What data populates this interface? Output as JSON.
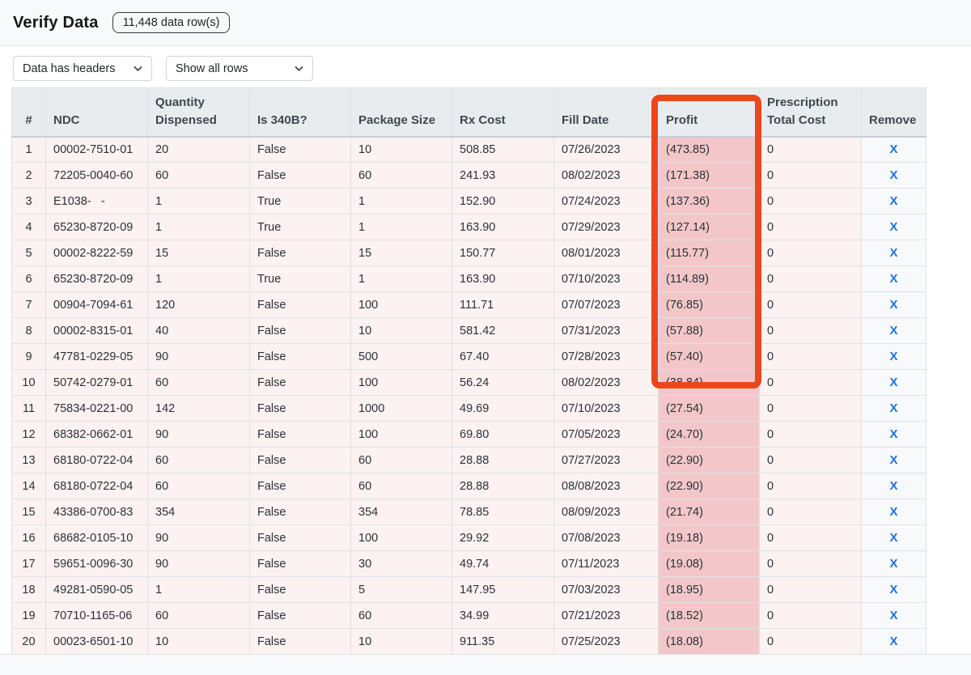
{
  "header": {
    "title": "Verify Data",
    "badge": "11,448 data row(s)"
  },
  "controls": {
    "headers_select_value": "Data has headers",
    "rows_select_value": "Show all rows"
  },
  "table": {
    "columns": [
      "#",
      "NDC",
      "Quantity Dispensed",
      "Is 340B?",
      "Package Size",
      "Rx Cost",
      "Fill Date",
      "Profit",
      "Prescription Total Cost",
      "Remove"
    ],
    "remove_label": "X",
    "rows": [
      {
        "num": "1",
        "ndc": "00002-7510-01",
        "qty": "20",
        "is_340b": "False",
        "package_size": "10",
        "rx_cost": "508.85",
        "fill_date": "07/26/2023",
        "profit": "(473.85)",
        "rx_total_cost": "0"
      },
      {
        "num": "2",
        "ndc": "72205-0040-60",
        "qty": "60",
        "is_340b": "False",
        "package_size": "60",
        "rx_cost": "241.93",
        "fill_date": "08/02/2023",
        "profit": "(171.38)",
        "rx_total_cost": "0"
      },
      {
        "num": "3",
        "ndc": "E1038-   -",
        "qty": "1",
        "is_340b": "True",
        "package_size": "1",
        "rx_cost": "152.90",
        "fill_date": "07/24/2023",
        "profit": "(137.36)",
        "rx_total_cost": "0"
      },
      {
        "num": "4",
        "ndc": "65230-8720-09",
        "qty": "1",
        "is_340b": "True",
        "package_size": "1",
        "rx_cost": "163.90",
        "fill_date": "07/29/2023",
        "profit": "(127.14)",
        "rx_total_cost": "0"
      },
      {
        "num": "5",
        "ndc": "00002-8222-59",
        "qty": "15",
        "is_340b": "False",
        "package_size": "15",
        "rx_cost": "150.77",
        "fill_date": "08/01/2023",
        "profit": "(115.77)",
        "rx_total_cost": "0"
      },
      {
        "num": "6",
        "ndc": "65230-8720-09",
        "qty": "1",
        "is_340b": "True",
        "package_size": "1",
        "rx_cost": "163.90",
        "fill_date": "07/10/2023",
        "profit": "(114.89)",
        "rx_total_cost": "0"
      },
      {
        "num": "7",
        "ndc": "00904-7094-61",
        "qty": "120",
        "is_340b": "False",
        "package_size": "100",
        "rx_cost": "111.71",
        "fill_date": "07/07/2023",
        "profit": "(76.85)",
        "rx_total_cost": "0"
      },
      {
        "num": "8",
        "ndc": "00002-8315-01",
        "qty": "40",
        "is_340b": "False",
        "package_size": "10",
        "rx_cost": "581.42",
        "fill_date": "07/31/2023",
        "profit": "(57.88)",
        "rx_total_cost": "0"
      },
      {
        "num": "9",
        "ndc": "47781-0229-05",
        "qty": "90",
        "is_340b": "False",
        "package_size": "500",
        "rx_cost": "67.40",
        "fill_date": "07/28/2023",
        "profit": "(57.40)",
        "rx_total_cost": "0"
      },
      {
        "num": "10",
        "ndc": "50742-0279-01",
        "qty": "60",
        "is_340b": "False",
        "package_size": "100",
        "rx_cost": "56.24",
        "fill_date": "08/02/2023",
        "profit": "(38.84)",
        "rx_total_cost": "0"
      },
      {
        "num": "11",
        "ndc": "75834-0221-00",
        "qty": "142",
        "is_340b": "False",
        "package_size": "1000",
        "rx_cost": "49.69",
        "fill_date": "07/10/2023",
        "profit": "(27.54)",
        "rx_total_cost": "0"
      },
      {
        "num": "12",
        "ndc": "68382-0662-01",
        "qty": "90",
        "is_340b": "False",
        "package_size": "100",
        "rx_cost": "69.80",
        "fill_date": "07/05/2023",
        "profit": "(24.70)",
        "rx_total_cost": "0"
      },
      {
        "num": "13",
        "ndc": "68180-0722-04",
        "qty": "60",
        "is_340b": "False",
        "package_size": "60",
        "rx_cost": "28.88",
        "fill_date": "07/27/2023",
        "profit": "(22.90)",
        "rx_total_cost": "0"
      },
      {
        "num": "14",
        "ndc": "68180-0722-04",
        "qty": "60",
        "is_340b": "False",
        "package_size": "60",
        "rx_cost": "28.88",
        "fill_date": "08/08/2023",
        "profit": "(22.90)",
        "rx_total_cost": "0"
      },
      {
        "num": "15",
        "ndc": "43386-0700-83",
        "qty": "354",
        "is_340b": "False",
        "package_size": "354",
        "rx_cost": "78.85",
        "fill_date": "08/09/2023",
        "profit": "(21.74)",
        "rx_total_cost": "0"
      },
      {
        "num": "16",
        "ndc": "68682-0105-10",
        "qty": "90",
        "is_340b": "False",
        "package_size": "100",
        "rx_cost": "29.92",
        "fill_date": "07/08/2023",
        "profit": "(19.18)",
        "rx_total_cost": "0"
      },
      {
        "num": "17",
        "ndc": "59651-0096-30",
        "qty": "90",
        "is_340b": "False",
        "package_size": "30",
        "rx_cost": "49.74",
        "fill_date": "07/11/2023",
        "profit": "(19.08)",
        "rx_total_cost": "0"
      },
      {
        "num": "18",
        "ndc": "49281-0590-05",
        "qty": "1",
        "is_340b": "False",
        "package_size": "5",
        "rx_cost": "147.95",
        "fill_date": "07/03/2023",
        "profit": "(18.95)",
        "rx_total_cost": "0"
      },
      {
        "num": "19",
        "ndc": "70710-1165-06",
        "qty": "60",
        "is_340b": "False",
        "package_size": "60",
        "rx_cost": "34.99",
        "fill_date": "07/21/2023",
        "profit": "(18.52)",
        "rx_total_cost": "0"
      },
      {
        "num": "20",
        "ndc": "00023-6501-10",
        "qty": "10",
        "is_340b": "False",
        "package_size": "10",
        "rx_cost": "911.35",
        "fill_date": "07/25/2023",
        "profit": "(18.08)",
        "rx_total_cost": "0"
      }
    ]
  },
  "annotation": {
    "type": "highlight-box",
    "column": "Profit",
    "rows_spanned": "1-10",
    "color": "#e8481a"
  },
  "colors": {
    "row_bg": "#fcf2f2",
    "profit_cell_bg": "#f3c7c9",
    "header_bg": "#e9ecef",
    "remove_link": "#1a73e8",
    "annotation_box": "#e8481a"
  }
}
